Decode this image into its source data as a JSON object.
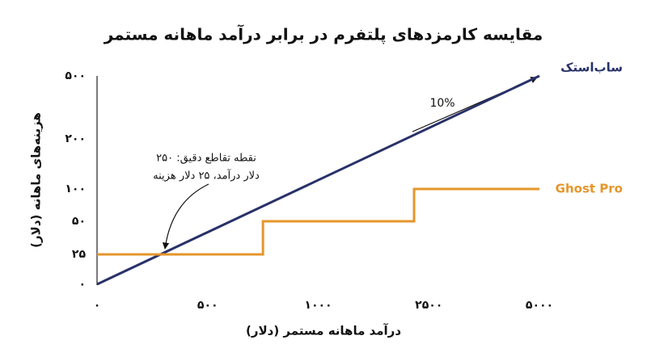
{
  "chart_data": {
    "type": "line",
    "title": "مقایسه کارمزدهای پلتفرم در برابر درآمد ماهانه مستمر",
    "x_label": "درآمد ماهانه مستمر (دلار)",
    "y_label": "هزینه‌های ماهانه (دلار)",
    "xlim": [
      0,
      5000
    ],
    "ylim": [
      0,
      500
    ],
    "xticks": [
      {
        "value": 0,
        "label": "۰"
      },
      {
        "value": 500,
        "label": "۵۰۰"
      },
      {
        "value": 1000,
        "label": "۱۰۰۰"
      },
      {
        "value": 2500,
        "label": "۲۵۰۰"
      },
      {
        "value": 5000,
        "label": "۵۰۰۰"
      }
    ],
    "yticks": [
      {
        "value": 0,
        "label": "۰"
      },
      {
        "value": 25,
        "label": "۲۵"
      },
      {
        "value": 50,
        "label": "۵۰"
      },
      {
        "value": 100,
        "label": "۱۰۰"
      },
      {
        "value": 200,
        "label": "۲۰۰"
      },
      {
        "value": 500,
        "label": "۵۰۰"
      }
    ],
    "series": [
      {
        "name": "ساب‌استک",
        "color": "#283168",
        "x": [
          0,
          5000
        ],
        "values": [
          0,
          500
        ]
      },
      {
        "name": "Ghost Pro",
        "color": "#e5962b",
        "x": [
          0,
          750,
          750,
          2300,
          2300,
          5000
        ],
        "values": [
          25,
          25,
          50,
          50,
          100,
          100
        ]
      }
    ],
    "annotations": [
      "10%",
      "نقطه تقاطع دقیق: ۲۵۰",
      "دلار درآمد، ۲۵ دلار هزینه"
    ]
  }
}
